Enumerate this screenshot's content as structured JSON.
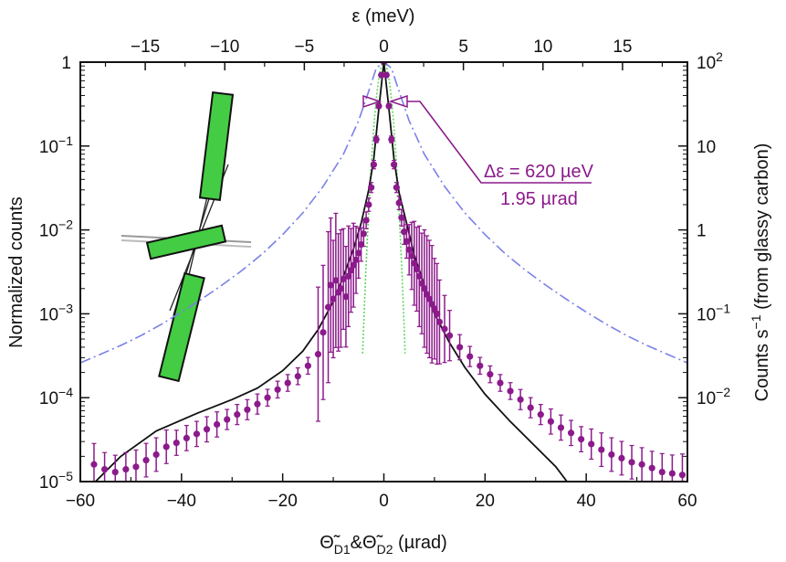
{
  "chart_data": {
    "type": "scatter",
    "title": "",
    "xlabel_parts": {
      "theta": "Θ̃",
      "d1": "D1",
      "amp": "&",
      "d2": "D2",
      "unit": " (µrad)"
    },
    "ylabel": "Normalized counts",
    "x2label": "ε (meV)",
    "y2label_parts": {
      "main": "Counts s",
      "exp": "−1",
      "tail": " (from glassy carbon)"
    },
    "xlim": [
      -60,
      60
    ],
    "ylim_log10": [
      -5,
      0
    ],
    "x2_ticks": [
      "−15",
      "−10",
      "−5",
      "0",
      "5",
      "10",
      "15"
    ],
    "x2_tick_values_mev": [
      -15,
      -10,
      -5,
      0,
      5,
      10,
      15
    ],
    "mev_per_urad": 0.318,
    "x_ticks": [
      "−60",
      "−40",
      "−20",
      "0",
      "20",
      "40",
      "60"
    ],
    "x_tick_values": [
      -60,
      -40,
      -20,
      0,
      20,
      40,
      60
    ],
    "y_ticks": [
      {
        "base": "1",
        "exp": "",
        "log": 0
      },
      {
        "base": "10",
        "exp": "−1",
        "log": -1
      },
      {
        "base": "10",
        "exp": "−2",
        "log": -2
      },
      {
        "base": "10",
        "exp": "−3",
        "log": -3
      },
      {
        "base": "10",
        "exp": "−4",
        "log": -4
      },
      {
        "base": "10",
        "exp": "−5",
        "log": -5
      }
    ],
    "y2_ticks": [
      {
        "base": "10",
        "exp": "2",
        "log": 0
      },
      {
        "base": "10",
        "exp": "",
        "log": -1
      },
      {
        "base": "1",
        "exp": "",
        "log": -2
      },
      {
        "base": "10",
        "exp": "−1",
        "log": -3
      },
      {
        "base": "10",
        "exp": "−2",
        "log": -4
      }
    ],
    "annotation": {
      "line1": "Δε = 620 µeV",
      "line2": "1.95 µrad"
    },
    "grid": false,
    "series": [
      {
        "kind": "data-points-with-errorbars",
        "color": "#8b1a8b",
        "points": [
          [
            -57.3,
            1.6e-05,
            0.25
          ],
          [
            -55.2,
            1.4e-05,
            0.2
          ],
          [
            -53.1,
            1.3e-05,
            0.2
          ],
          [
            -51.0,
            1.4e-05,
            0.2
          ],
          [
            -49.0,
            1.5e-05,
            0.2
          ],
          [
            -47.0,
            1.8e-05,
            0.2
          ],
          [
            -45.0,
            2.1e-05,
            0.2
          ],
          [
            -43.0,
            2.6e-05,
            0.2
          ],
          [
            -41.0,
            2.9e-05,
            0.15
          ],
          [
            -39.0,
            3.3e-05,
            0.15
          ],
          [
            -37.0,
            3.7e-05,
            0.15
          ],
          [
            -35.0,
            4.2e-05,
            0.15
          ],
          [
            -33.0,
            4.8e-05,
            0.15
          ],
          [
            -31.0,
            5.5e-05,
            0.12
          ],
          [
            -29.0,
            6.3e-05,
            0.12
          ],
          [
            -27.0,
            7.2e-05,
            0.12
          ],
          [
            -25.0,
            8.4e-05,
            0.12
          ],
          [
            -23.0,
            0.0001,
            0.1
          ],
          [
            -21.0,
            0.000125,
            0.1
          ],
          [
            -19.0,
            0.00015,
            0.1
          ],
          [
            -17.0,
            0.00018,
            0.1
          ],
          [
            -15.0,
            0.00024,
            0.1
          ],
          [
            -13.0,
            0.00033,
            0.8
          ],
          [
            -12.0,
            0.0006,
            0.8
          ],
          [
            -11.0,
            0.0012,
            0.9
          ],
          [
            -10.5,
            0.0022,
            0.8
          ],
          [
            -10.0,
            0.0015,
            0.7
          ],
          [
            -9.5,
            0.0025,
            0.8
          ],
          [
            -9.0,
            0.0018,
            0.7
          ],
          [
            -8.5,
            0.002,
            0.7
          ],
          [
            -8.0,
            0.0026,
            0.6
          ],
          [
            -7.5,
            0.0016,
            0.6
          ],
          [
            -7.0,
            0.0028,
            0.6
          ],
          [
            -6.5,
            0.0033,
            0.5
          ],
          [
            -6.0,
            0.0038,
            0.5
          ],
          [
            -5.5,
            0.0044,
            0.4
          ],
          [
            -5.0,
            0.0053,
            0.3
          ],
          [
            -4.5,
            0.0067,
            0.2
          ],
          [
            -4.0,
            0.009,
            0.15
          ],
          [
            -3.5,
            0.013,
            0.1
          ],
          [
            -3.0,
            0.02,
            0.08
          ],
          [
            -2.5,
            0.032,
            0.06
          ],
          [
            -2.0,
            0.06,
            0.05
          ],
          [
            -1.5,
            0.12,
            0.04
          ],
          [
            -1.0,
            0.3,
            0.03
          ],
          [
            -0.5,
            0.7,
            0.02
          ],
          [
            0.0,
            1.0,
            0.01
          ],
          [
            0.5,
            0.7,
            0.02
          ],
          [
            1.0,
            0.3,
            0.03
          ],
          [
            1.5,
            0.12,
            0.04
          ],
          [
            2.0,
            0.06,
            0.05
          ],
          [
            2.5,
            0.032,
            0.06
          ],
          [
            3.0,
            0.021,
            0.08
          ],
          [
            3.5,
            0.014,
            0.1
          ],
          [
            4.0,
            0.0095,
            0.15
          ],
          [
            4.5,
            0.0073,
            0.2
          ],
          [
            5.0,
            0.0058,
            0.3
          ],
          [
            5.5,
            0.0049,
            0.4
          ],
          [
            6.0,
            0.004,
            0.5
          ],
          [
            6.5,
            0.0034,
            0.5
          ],
          [
            7.0,
            0.0028,
            0.6
          ],
          [
            7.5,
            0.0023,
            0.6
          ],
          [
            8.0,
            0.002,
            0.7
          ],
          [
            8.5,
            0.0017,
            0.7
          ],
          [
            9.0,
            0.0015,
            0.7
          ],
          [
            9.5,
            0.0013,
            0.7
          ],
          [
            10.0,
            0.00115,
            0.6
          ],
          [
            10.5,
            0.001,
            0.6
          ],
          [
            11.0,
            0.0008,
            0.5
          ],
          [
            12.0,
            0.00066,
            0.4
          ],
          [
            13.0,
            0.00055,
            0.3
          ],
          [
            15.0,
            0.0004,
            0.15
          ],
          [
            17.0,
            0.00031,
            0.12
          ],
          [
            19.0,
            0.00024,
            0.1
          ],
          [
            21.0,
            0.00019,
            0.1
          ],
          [
            23.0,
            0.00015,
            0.1
          ],
          [
            25.0,
            0.00012,
            0.1
          ],
          [
            27.0,
            9.5e-05,
            0.12
          ],
          [
            29.0,
            7.6e-05,
            0.12
          ],
          [
            31.0,
            6.3e-05,
            0.12
          ],
          [
            33.0,
            5.2e-05,
            0.15
          ],
          [
            35.0,
            4.4e-05,
            0.15
          ],
          [
            37.0,
            3.8e-05,
            0.15
          ],
          [
            39.0,
            3.2e-05,
            0.15
          ],
          [
            41.0,
            2.8e-05,
            0.18
          ],
          [
            43.0,
            2.4e-05,
            0.2
          ],
          [
            45.0,
            2.1e-05,
            0.2
          ],
          [
            47.0,
            1.9e-05,
            0.2
          ],
          [
            49.0,
            1.7e-05,
            0.2
          ],
          [
            51.0,
            1.6e-05,
            0.2
          ],
          [
            53.0,
            1.45e-05,
            0.2
          ],
          [
            55.0,
            1.3e-05,
            0.22
          ],
          [
            57.0,
            1.25e-05,
            0.22
          ],
          [
            59.0,
            1.2e-05,
            0.25
          ]
        ]
      },
      {
        "kind": "fit-curve",
        "color": "#111111",
        "points": [
          [
            -57,
            1e-05
          ],
          [
            -52,
            2e-05
          ],
          [
            -45,
            4e-05
          ],
          [
            -37,
            6.5e-05
          ],
          [
            -30,
            9.5e-05
          ],
          [
            -25,
            0.00013
          ],
          [
            -20,
            0.00021
          ],
          [
            -16,
            0.00036
          ],
          [
            -13,
            0.00065
          ],
          [
            -10,
            0.0014
          ],
          [
            -8,
            0.0028
          ],
          [
            -6,
            0.006
          ],
          [
            -4.5,
            0.012
          ],
          [
            -3,
            0.03
          ],
          [
            -2,
            0.07
          ],
          [
            -1,
            0.28
          ],
          [
            0,
            1.0
          ],
          [
            1,
            0.28
          ],
          [
            2,
            0.07
          ],
          [
            3,
            0.028
          ],
          [
            4.5,
            0.012
          ],
          [
            6,
            0.005
          ],
          [
            8,
            0.0022
          ],
          [
            10,
            0.001
          ],
          [
            13,
            0.00045
          ],
          [
            16,
            0.00023
          ],
          [
            20,
            0.00011
          ],
          [
            25,
            5.2e-05
          ],
          [
            30,
            2.6e-05
          ],
          [
            34,
            1.5e-05
          ],
          [
            36.2,
            1e-05
          ]
        ]
      },
      {
        "kind": "dash-dot-curve",
        "color": "#7b80e8",
        "points": [
          [
            -60,
            0.00026
          ],
          [
            -56,
            0.00033
          ],
          [
            -52,
            0.00042
          ],
          [
            -48,
            0.00055
          ],
          [
            -44,
            0.00075
          ],
          [
            -40,
            0.00105
          ],
          [
            -36,
            0.0015
          ],
          [
            -32,
            0.0022
          ],
          [
            -28,
            0.0033
          ],
          [
            -24,
            0.0052
          ],
          [
            -20,
            0.0088
          ],
          [
            -16,
            0.016
          ],
          [
            -12,
            0.033
          ],
          [
            -8,
            0.08
          ],
          [
            -5,
            0.2
          ],
          [
            -3,
            0.45
          ],
          [
            -1.5,
            0.85
          ],
          [
            0,
            1.0
          ],
          [
            1.5,
            0.85
          ],
          [
            3,
            0.45
          ],
          [
            5,
            0.2
          ],
          [
            8,
            0.08
          ],
          [
            12,
            0.033
          ],
          [
            16,
            0.016
          ],
          [
            20,
            0.0088
          ],
          [
            24,
            0.0052
          ],
          [
            28,
            0.0033
          ],
          [
            32,
            0.0022
          ],
          [
            36,
            0.0015
          ],
          [
            40,
            0.00105
          ],
          [
            44,
            0.00075
          ],
          [
            48,
            0.00055
          ],
          [
            52,
            0.00042
          ],
          [
            56,
            0.00033
          ],
          [
            60,
            0.00026
          ]
        ]
      },
      {
        "kind": "dotted-gaussian",
        "color": "#5fd65f",
        "sigma_urad": 1.05,
        "x_range": [
          -4.2,
          4.2
        ]
      }
    ],
    "inset": {
      "description": "crystal geometry schematic",
      "crystal_color": "#44cc44"
    }
  }
}
